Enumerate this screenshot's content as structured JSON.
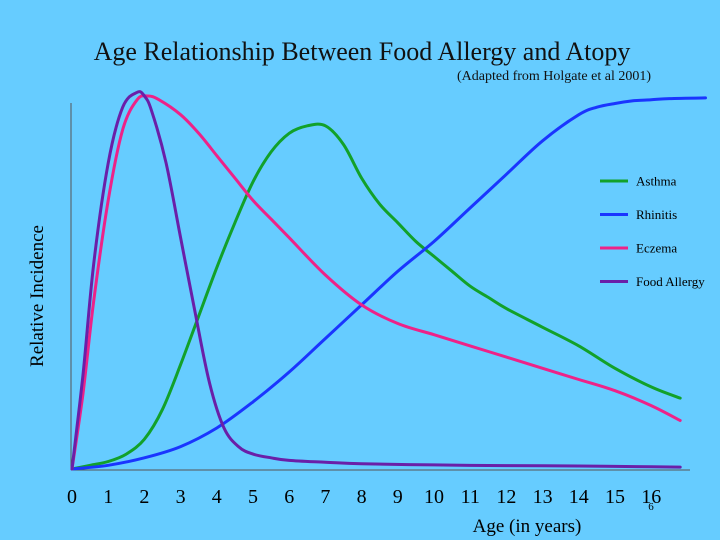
{
  "chart_data": {
    "type": "line",
    "title": "Age Relationship Between Food Allergy and Atopy",
    "subtitle": "(Adapted from Holgate et al 2001)",
    "xlabel": "Age (in years)",
    "ylabel": "Relative Incidence",
    "xlim": [
      0,
      17
    ],
    "ylim": [
      0,
      100
    ],
    "x_ticks": [
      "0",
      "1",
      "2",
      "3",
      "4",
      "5",
      "6",
      "7",
      "8",
      "9",
      "10",
      "11",
      "12",
      "13",
      "14",
      "15",
      "16"
    ],
    "legend_position": "right",
    "series": [
      {
        "name": "Asthma",
        "color": "#12a12a",
        "x": [
          0,
          0.5,
          1,
          1.5,
          2,
          2.5,
          3,
          3.5,
          4,
          4.5,
          5,
          5.5,
          6,
          6.5,
          7,
          7.5,
          8,
          8.5,
          9,
          9.5,
          10,
          10.5,
          11,
          11.5,
          12,
          13,
          14,
          15,
          16,
          16.8
        ],
        "y": [
          0,
          1,
          2,
          4,
          8,
          16,
          28,
          41,
          54,
          66,
          77,
          85,
          90,
          92,
          92,
          87,
          78,
          71,
          66,
          61,
          57,
          53,
          49,
          46,
          43,
          38,
          33,
          27,
          22,
          19
        ]
      },
      {
        "name": "Rhinitis",
        "color": "#1a35ff",
        "x": [
          0,
          1,
          2,
          3,
          4,
          5,
          6,
          7,
          8,
          9,
          10,
          11,
          12,
          13,
          14,
          14.5,
          15,
          15.5,
          16,
          16.5,
          17.5
        ],
        "y": [
          0,
          1,
          3,
          6,
          11,
          18,
          26,
          35,
          44,
          53,
          61,
          70,
          79,
          88,
          95,
          97,
          98,
          98.7,
          99,
          99.3,
          99.5
        ]
      },
      {
        "name": "Eczema",
        "color": "#ee2288",
        "x": [
          0,
          0.3,
          0.6,
          1,
          1.4,
          1.8,
          2.1,
          2.4,
          3,
          3.5,
          4,
          4.5,
          5,
          5.5,
          6,
          7,
          8,
          9,
          10,
          11,
          12,
          13,
          14,
          15,
          16,
          16.8
        ],
        "y": [
          0,
          20,
          45,
          72,
          91,
          99,
          100,
          99,
          95,
          90,
          84,
          78,
          72,
          67,
          62,
          52,
          44,
          39,
          36,
          33,
          30,
          27,
          24,
          21,
          17,
          13
        ]
      },
      {
        "name": "Food Allergy",
        "color": "#6a1fa8",
        "x": [
          0,
          0.3,
          0.6,
          1,
          1.4,
          1.8,
          2,
          2.2,
          2.6,
          3,
          3.4,
          3.8,
          4.2,
          4.6,
          5,
          5.5,
          6,
          7,
          8,
          10,
          12,
          14,
          16,
          16.8
        ],
        "y": [
          0,
          25,
          55,
          82,
          97,
          101,
          100,
          96,
          82,
          62,
          42,
          23,
          11,
          6,
          4,
          3,
          2.3,
          1.8,
          1.4,
          1.1,
          0.9,
          0.8,
          0.6,
          0.5
        ]
      }
    ]
  },
  "slide_number": "6"
}
